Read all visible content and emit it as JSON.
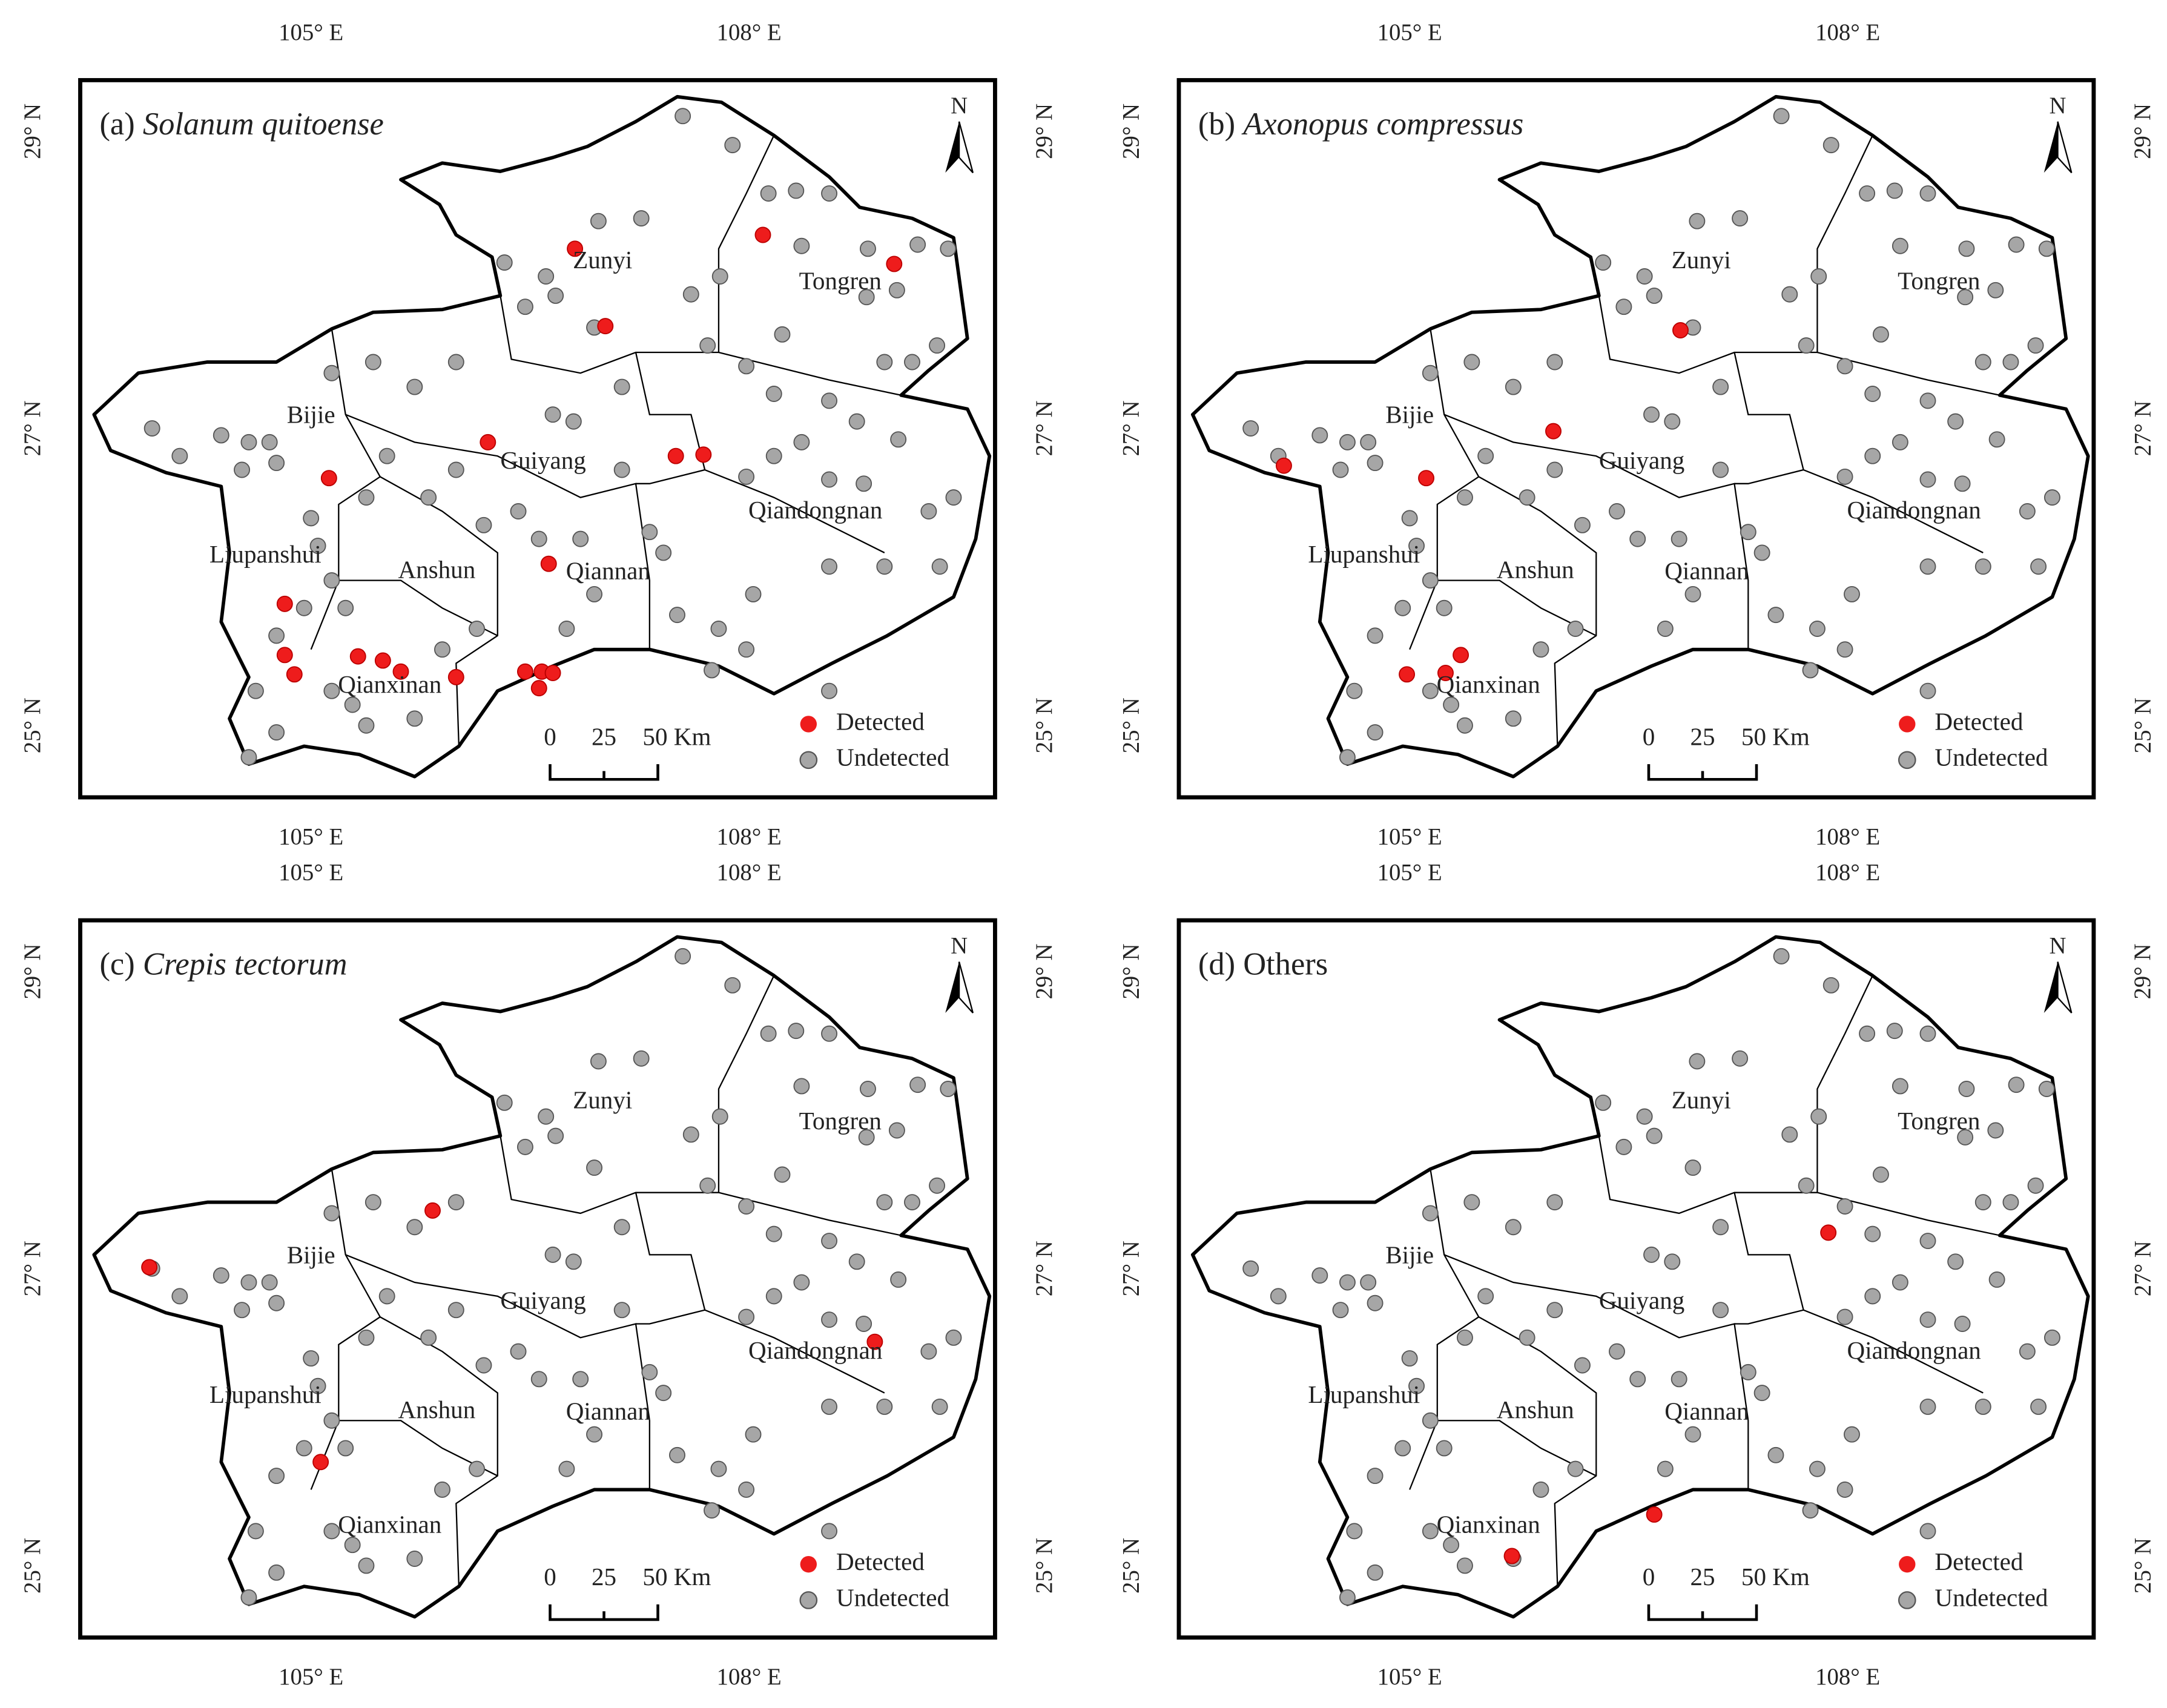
{
  "panels": [
    {
      "label": "(a)",
      "name": "Solanum quitoense"
    },
    {
      "label": "(b)",
      "name": "Axonopus compressus"
    },
    {
      "label": "(c)",
      "name": "Crepis tectorum"
    },
    {
      "label": "(d)",
      "name": "Others"
    }
  ],
  "regions": [
    "Zunyi",
    "Tongren",
    "Bijie",
    "Guiyang",
    "Qiandongnan",
    "Liupanshui",
    "Anshun",
    "Qiannan",
    "Qianxinan"
  ],
  "lon_labels": [
    "105° E",
    "108° E"
  ],
  "lat_labels": [
    "29° N",
    "27° N",
    "25° N"
  ],
  "legend": [
    "Detected",
    "Undetected"
  ],
  "scale_bar": [
    "0",
    "25",
    "50 Km"
  ],
  "north": "N"
}
